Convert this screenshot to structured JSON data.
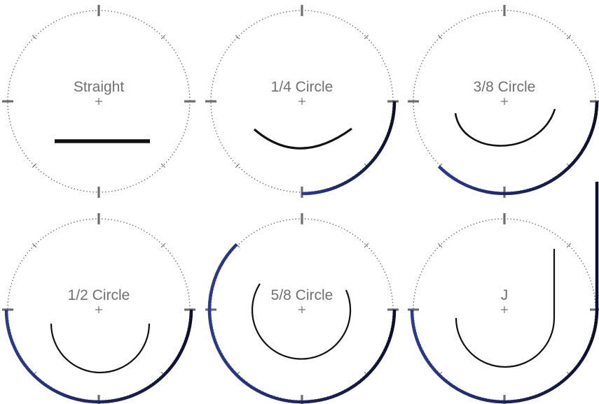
{
  "panels": [
    {
      "label": "Straight",
      "fraction": 0
    },
    {
      "label": "1/4 Circle",
      "fraction": 0.25
    },
    {
      "label": "3/8 Circle",
      "fraction": 0.375
    },
    {
      "label": "1/2 Circle",
      "fraction": 0.5
    },
    {
      "label": "5/8 Circle",
      "fraction": 0.625
    },
    {
      "label": "J",
      "fraction": null
    }
  ],
  "colors": {
    "arc_start": "#2b3a8f",
    "arc_end": "#0d0f2e",
    "needle": "#111111",
    "dial": "#555555",
    "label": "#707070"
  }
}
